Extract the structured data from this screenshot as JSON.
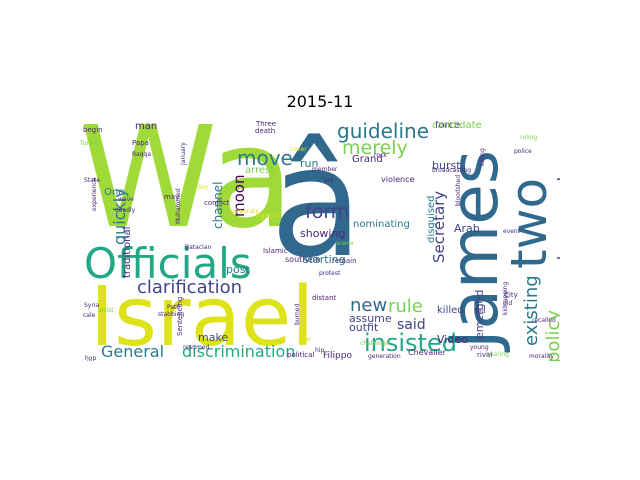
{
  "title": "2015-11",
  "colors": {
    "yellow": "#dde318",
    "green": "#a0da39",
    "lightgreen": "#7ad151",
    "teal": "#22a884",
    "aqua": "#2a788e",
    "blue": "#31688e",
    "navy": "#414487",
    "purple": "#482878",
    "dark": "#440154"
  },
  "words": [
    {
      "text": "Wa",
      "color": "green"
    },
    {
      "text": "â",
      "color": "blue"
    },
    {
      "text": "James",
      "color": "blue"
    },
    {
      "text": "Israel",
      "color": "yellow"
    },
    {
      "text": "Officials",
      "color": "teal"
    },
    {
      "text": "two",
      "color": "blue"
    },
    {
      "text": "insisted",
      "color": "teal"
    },
    {
      "text": "guideline",
      "color": "aqua"
    },
    {
      "text": "clarification",
      "color": "navy"
    },
    {
      "text": "General",
      "color": "aqua"
    },
    {
      "text": "discrimination",
      "color": "teal"
    },
    {
      "text": "merely",
      "color": "lightgreen"
    },
    {
      "text": "move",
      "color": "aqua"
    },
    {
      "text": "form",
      "color": "navy"
    },
    {
      "text": "rule",
      "color": "lightgreen"
    },
    {
      "text": "new",
      "color": "blue"
    },
    {
      "text": "policy",
      "color": "lightgreen"
    },
    {
      "text": "existing",
      "color": "aqua"
    },
    {
      "text": "denounced",
      "color": "navy"
    },
    {
      "text": "quickly",
      "color": "aqua"
    },
    {
      "text": "Secretary",
      "color": "navy"
    },
    {
      "text": "moon",
      "color": "dark"
    },
    {
      "text": "said",
      "color": "navy"
    },
    {
      "text": "killed",
      "color": "navy"
    },
    {
      "text": "burst",
      "color": "navy"
    },
    {
      "text": "Arab",
      "color": "navy"
    },
    {
      "text": "Video",
      "color": "purple"
    },
    {
      "text": "emerged",
      "color": "navy"
    },
    {
      "text": "assume",
      "color": "navy"
    },
    {
      "text": "outfit",
      "color": "navy"
    },
    {
      "text": "post",
      "color": "aqua"
    },
    {
      "text": "make",
      "color": "navy"
    },
    {
      "text": "starting",
      "color": "aqua"
    },
    {
      "text": "showing",
      "color": "purple"
    },
    {
      "text": "run",
      "color": "aqua"
    },
    {
      "text": "arrest",
      "color": "lightgreen"
    },
    {
      "text": "nominating",
      "color": "aqua"
    },
    {
      "text": "disguised",
      "color": "aqua"
    },
    {
      "text": "Grand",
      "color": "purple"
    },
    {
      "text": "force",
      "color": "purple"
    },
    {
      "text": "candidate",
      "color": "lightgreen"
    },
    {
      "text": "man",
      "color": "purple"
    },
    {
      "text": "channel",
      "color": "aqua"
    },
    {
      "text": "One",
      "color": "aqua"
    },
    {
      "text": "traditional",
      "color": "purple"
    },
    {
      "text": "Filippo",
      "color": "purple"
    },
    {
      "text": "Three",
      "color": "purple"
    },
    {
      "text": "death",
      "color": "purple"
    },
    {
      "text": "Papa",
      "color": "purple"
    },
    {
      "text": "Raqqa",
      "color": "purple"
    },
    {
      "text": "January",
      "color": "purple"
    },
    {
      "text": "may",
      "color": "purple"
    },
    {
      "text": "begin",
      "color": "purple"
    },
    {
      "text": "Turkey",
      "color": "lightgreen"
    },
    {
      "text": "experience",
      "color": "purple"
    },
    {
      "text": "State",
      "color": "purple"
    },
    {
      "text": "wave",
      "color": "purple"
    },
    {
      "text": "deadly",
      "color": "purple"
    },
    {
      "text": "Muhammed",
      "color": "purple"
    },
    {
      "text": "conflict",
      "color": "purple"
    },
    {
      "text": "corporate",
      "color": "yellow"
    },
    {
      "text": "support",
      "color": "yellow"
    },
    {
      "text": "member",
      "color": "purple"
    },
    {
      "text": "aid",
      "color": "purple"
    },
    {
      "text": "rock",
      "color": "purple"
    },
    {
      "text": "violence",
      "color": "purple"
    },
    {
      "text": "broadcasting",
      "color": "purple"
    },
    {
      "text": "police",
      "color": "purple"
    },
    {
      "text": "event",
      "color": "purple"
    },
    {
      "text": "bloodshed",
      "color": "purple"
    },
    {
      "text": "Syria",
      "color": "purple"
    },
    {
      "text": "cale",
      "color": "purple"
    },
    {
      "text": "artist",
      "color": "lightgreen"
    },
    {
      "text": "hop",
      "color": "purple"
    },
    {
      "text": "will",
      "color": "purple"
    },
    {
      "text": "Bataclan",
      "color": "purple"
    },
    {
      "text": "Islamic",
      "color": "purple"
    },
    {
      "text": "southern",
      "color": "purple"
    },
    {
      "text": "remain",
      "color": "purple"
    },
    {
      "text": "scene",
      "color": "lightgreen"
    },
    {
      "text": "protest",
      "color": "purple"
    },
    {
      "text": "Sentencing",
      "color": "purple"
    },
    {
      "text": "Path",
      "color": "purple"
    },
    {
      "text": "stabbing",
      "color": "purple"
    },
    {
      "text": "resumed",
      "color": "purple"
    },
    {
      "text": "political",
      "color": "purple"
    },
    {
      "text": "distant",
      "color": "purple"
    },
    {
      "text": "hip",
      "color": "purple"
    },
    {
      "text": "burned",
      "color": "purple"
    },
    {
      "text": "challenge",
      "color": "lightgreen"
    },
    {
      "text": "generation",
      "color": "purple"
    },
    {
      "text": "Chevalier",
      "color": "purple"
    },
    {
      "text": "fled",
      "color": "purple"
    },
    {
      "text": "hearing",
      "color": "lightgreen"
    },
    {
      "text": "young",
      "color": "purple"
    },
    {
      "text": "rival",
      "color": "purple"
    },
    {
      "text": "shooting",
      "color": "purple"
    },
    {
      "text": "recalled",
      "color": "purple"
    },
    {
      "text": "morality",
      "color": "purple"
    },
    {
      "text": "old",
      "color": "purple"
    },
    {
      "text": "kidnapping",
      "color": "purple"
    },
    {
      "text": "City",
      "color": "purple"
    },
    {
      "text": "year",
      "color": "yellow"
    },
    {
      "text": "cover",
      "color": "yellow"
    },
    {
      "text": "killing",
      "color": "purple"
    },
    {
      "text": "ruling",
      "color": "lightgreen"
    },
    {
      "text": "day",
      "color": "yellow"
    }
  ]
}
